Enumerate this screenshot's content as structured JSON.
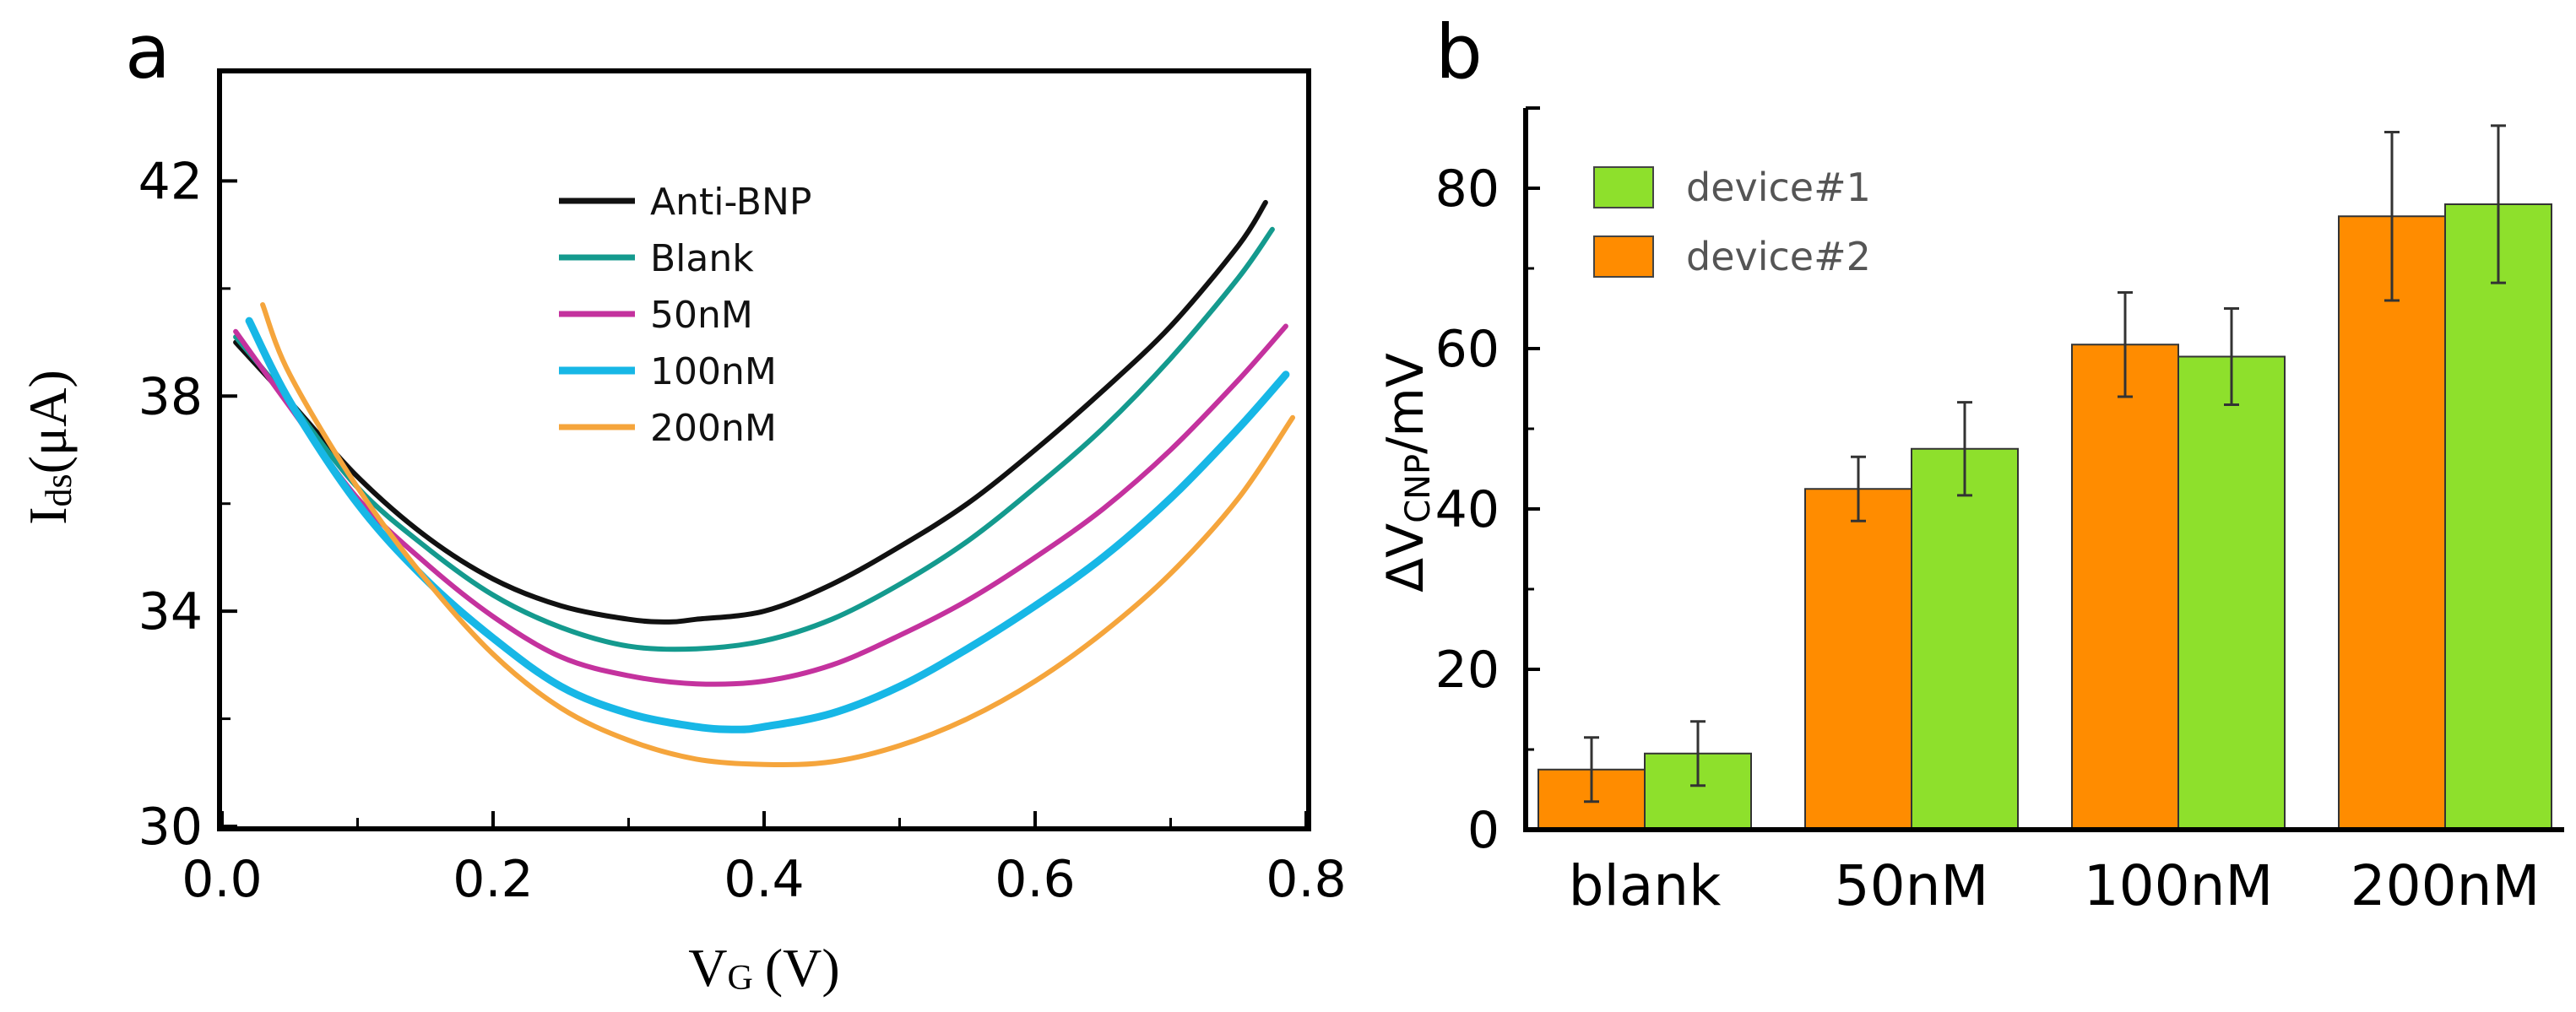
{
  "chart_data": [
    {
      "panel_label": "a",
      "type": "line",
      "xlabel": "VG (V)",
      "xlabel_main": "V",
      "xlabel_sub": "G",
      "xlabel_unit": "(V)",
      "ylabel": "Ids(μA)",
      "ylabel_main": "I",
      "ylabel_sub": "ds",
      "ylabel_unit": "(μA)",
      "xlim": [
        0.0,
        0.8
      ],
      "ylim": [
        30,
        44
      ],
      "xticks": [
        0.0,
        0.2,
        0.4,
        0.6,
        0.8
      ],
      "xtick_labels": [
        "0.0",
        "0.2",
        "0.4",
        "0.6",
        "0.8"
      ],
      "yticks": [
        30,
        34,
        38,
        42
      ],
      "ytick_labels": [
        "30",
        "34",
        "38",
        "42"
      ],
      "legend_position": "top-center",
      "series": [
        {
          "name": "Anti-BNP",
          "color": "#111111",
          "x": [
            0.01,
            0.05,
            0.1,
            0.15,
            0.2,
            0.25,
            0.3,
            0.33,
            0.35,
            0.4,
            0.45,
            0.5,
            0.55,
            0.6,
            0.65,
            0.7,
            0.75,
            0.77
          ],
          "y": [
            39.0,
            37.9,
            36.5,
            35.4,
            34.6,
            34.1,
            33.85,
            33.8,
            33.85,
            34.0,
            34.5,
            35.2,
            36.0,
            37.0,
            38.1,
            39.3,
            40.8,
            41.6
          ]
        },
        {
          "name": "Blank",
          "color": "#149a8e",
          "x": [
            0.01,
            0.05,
            0.1,
            0.15,
            0.2,
            0.25,
            0.3,
            0.35,
            0.4,
            0.45,
            0.5,
            0.55,
            0.6,
            0.65,
            0.7,
            0.75,
            0.775
          ],
          "y": [
            39.1,
            37.9,
            36.3,
            35.2,
            34.3,
            33.7,
            33.35,
            33.3,
            33.45,
            33.85,
            34.5,
            35.3,
            36.3,
            37.4,
            38.7,
            40.2,
            41.1
          ]
        },
        {
          "name": "50nM",
          "color": "#c4329e",
          "x": [
            0.01,
            0.05,
            0.1,
            0.15,
            0.2,
            0.25,
            0.3,
            0.35,
            0.4,
            0.45,
            0.5,
            0.55,
            0.6,
            0.65,
            0.7,
            0.75,
            0.785
          ],
          "y": [
            39.2,
            37.8,
            36.1,
            34.9,
            33.9,
            33.15,
            32.8,
            32.65,
            32.7,
            33.0,
            33.55,
            34.2,
            35.0,
            35.9,
            37.0,
            38.3,
            39.3
          ]
        },
        {
          "name": "100nM",
          "color": "#17b7e6",
          "x": [
            0.02,
            0.05,
            0.1,
            0.15,
            0.2,
            0.25,
            0.3,
            0.35,
            0.38,
            0.4,
            0.45,
            0.5,
            0.55,
            0.6,
            0.65,
            0.7,
            0.75,
            0.785
          ],
          "y": [
            39.4,
            37.9,
            36.0,
            34.6,
            33.5,
            32.6,
            32.1,
            31.85,
            31.8,
            31.85,
            32.1,
            32.6,
            33.3,
            34.1,
            35.0,
            36.1,
            37.4,
            38.4
          ]
        },
        {
          "name": "200nM",
          "color": "#f5a53c",
          "x": [
            0.03,
            0.05,
            0.1,
            0.15,
            0.2,
            0.25,
            0.3,
            0.35,
            0.4,
            0.45,
            0.5,
            0.55,
            0.6,
            0.65,
            0.7,
            0.75,
            0.79
          ],
          "y": [
            39.7,
            38.4,
            36.3,
            34.6,
            33.2,
            32.2,
            31.6,
            31.25,
            31.15,
            31.2,
            31.5,
            32.0,
            32.7,
            33.6,
            34.7,
            36.1,
            37.6
          ]
        }
      ]
    },
    {
      "panel_label": "b",
      "type": "bar",
      "ylabel": "ΔVCNP/mV",
      "ylabel_prefix": "ΔV",
      "ylabel_sub": "CNP",
      "ylabel_unit": "/mV",
      "xlabel": "",
      "categories": [
        "blank",
        "50nM",
        "100nM",
        "200nM"
      ],
      "ylim": [
        0,
        90
      ],
      "yticks": [
        0,
        20,
        40,
        60,
        80
      ],
      "ytick_labels": [
        "0",
        "20",
        "40",
        "60",
        "80"
      ],
      "legend_position": "top-left",
      "legend_order": [
        "device#1",
        "device#2"
      ],
      "series": [
        {
          "name": "device#2",
          "color": "#ff8c00",
          "values": [
            7.5,
            42.5,
            60.5,
            76.5
          ],
          "errors": [
            4,
            4,
            6.5,
            10.5
          ]
        },
        {
          "name": "device#1",
          "color": "#8ee02c",
          "values": [
            9.5,
            47.5,
            59,
            78
          ],
          "errors": [
            4,
            5.8,
            6,
            9.8
          ]
        }
      ]
    }
  ]
}
